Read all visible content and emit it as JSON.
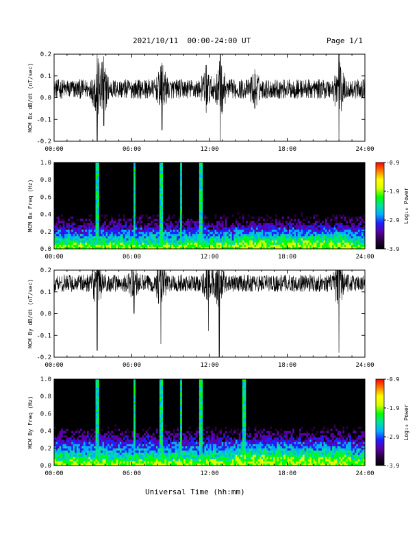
{
  "header": {
    "date_range": "2021/10/11  00:00-24:00 UT",
    "page": "Page 1/1"
  },
  "footer": {
    "xlabel": "Universal Time (hh:mm)"
  },
  "colors": {
    "trace": "#000000",
    "spectrogram_colormap": [
      "#000000",
      "#2a0040",
      "#5a00a8",
      "#2020ff",
      "#00b0ff",
      "#00e0a0",
      "#00ff00",
      "#d8ff00",
      "#ffff00",
      "#ff8000",
      "#ff0000"
    ]
  },
  "chart_data": [
    {
      "type": "line",
      "ylabel": "MCM Bx dB/dt (nT/sec)",
      "xlim": [
        "00:00",
        "24:00"
      ],
      "xticks": [
        "00:00",
        "06:00",
        "12:00",
        "18:00",
        "24:00"
      ],
      "ylim": [
        -0.2,
        0.2
      ],
      "yticks": [
        "0.2",
        "0.1",
        "0.0",
        "-0.1",
        "-0.2"
      ],
      "baseline": 0.04,
      "noise_amplitude": 0.045,
      "bursts": [
        {
          "t": "03:20",
          "min": -0.2,
          "max": 0.2
        },
        {
          "t": "03:50",
          "min": -0.13,
          "max": 0.19
        },
        {
          "t": "08:20",
          "min": -0.15,
          "max": 0.16
        },
        {
          "t": "12:50",
          "min": -0.2,
          "max": 0.2
        },
        {
          "t": "11:45",
          "min": -0.07,
          "max": 0.15
        },
        {
          "t": "15:30",
          "min": -0.05,
          "max": 0.13
        },
        {
          "t": "22:00",
          "min": -0.2,
          "max": 0.2
        }
      ]
    },
    {
      "type": "heatmap",
      "ylabel": "MCM Bx Freq (Hz)",
      "xlim": [
        "00:00",
        "24:00"
      ],
      "xticks": [
        "00:00",
        "06:00",
        "12:00",
        "18:00",
        "24:00"
      ],
      "ylim": [
        0.0,
        1.0
      ],
      "yticks": [
        "1.0",
        "0.8",
        "0.6",
        "0.4",
        "0.2",
        "0.0"
      ],
      "colorbar": {
        "label": "Log₁₀ Power",
        "range": [
          -3.9,
          -0.9
        ],
        "ticks": [
          "-0.9",
          "-1.9",
          "-2.9",
          "-3.9"
        ]
      },
      "bright_stripes": [
        "03:20",
        "06:10",
        "08:15",
        "09:50",
        "11:20"
      ],
      "activity_band_max_hz": 0.3
    },
    {
      "type": "line",
      "ylabel": "MCM By dB/dt (nT/sec)",
      "xlim": [
        "00:00",
        "24:00"
      ],
      "xticks": [
        "00:00",
        "06:00",
        "12:00",
        "18:00",
        "24:00"
      ],
      "ylim": [
        -0.2,
        0.2
      ],
      "yticks": [
        "0.2",
        "0.1",
        "0.0",
        "-0.1",
        "-0.2"
      ],
      "baseline": 0.14,
      "noise_amplitude": 0.04,
      "bursts": [
        {
          "t": "03:20",
          "min": -0.17,
          "max": 0.2
        },
        {
          "t": "06:10",
          "min": 0.0,
          "max": 0.2
        },
        {
          "t": "08:15",
          "min": -0.14,
          "max": 0.2
        },
        {
          "t": "11:55",
          "min": -0.08,
          "max": 0.2
        },
        {
          "t": "12:45",
          "min": -0.2,
          "max": 0.2
        },
        {
          "t": "22:00",
          "min": -0.18,
          "max": 0.2
        }
      ]
    },
    {
      "type": "heatmap",
      "ylabel": "MCM By Freq (Hz)",
      "xlim": [
        "00:00",
        "24:00"
      ],
      "xticks": [
        "00:00",
        "06:00",
        "12:00",
        "18:00",
        "24:00"
      ],
      "ylim": [
        0.0,
        1.0
      ],
      "yticks": [
        "1.0",
        "0.8",
        "0.6",
        "0.4",
        "0.2",
        "0.0"
      ],
      "colorbar": {
        "label": "Log₁₀ Power",
        "range": [
          -3.9,
          -0.9
        ],
        "ticks": [
          "-0.9",
          "-1.9",
          "-2.9",
          "-3.9"
        ]
      },
      "bright_stripes": [
        "03:20",
        "06:10",
        "08:15",
        "09:50",
        "11:20",
        "14:40"
      ],
      "activity_band_max_hz": 0.35
    }
  ]
}
